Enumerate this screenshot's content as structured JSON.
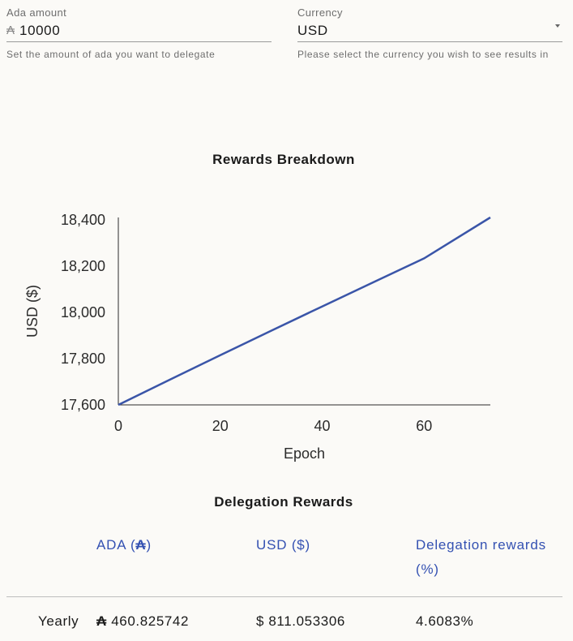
{
  "ada_field": {
    "label": "Ada amount",
    "prefix": "₳",
    "value": "10000",
    "helper": "Set the amount of ada you want to delegate"
  },
  "currency_field": {
    "label": "Currency",
    "value": "USD",
    "helper": "Please select the currency you wish to see results in"
  },
  "chart_data": {
    "type": "line",
    "title": "Rewards Breakdown",
    "xlabel": "Epoch",
    "ylabel": "USD ($)",
    "xlim": [
      0,
      73
    ],
    "ylim": [
      17600,
      18411
    ],
    "xticks": [
      0,
      20,
      40,
      60
    ],
    "yticks": [
      17600,
      17800,
      18000,
      18200,
      18400
    ],
    "ytick_labels": [
      "17,600",
      "17,800",
      "18,000",
      "18,200",
      "18,400"
    ],
    "color": "#3a55a8",
    "series": [
      {
        "x": [
          0,
          10,
          20,
          30,
          40,
          50,
          60,
          73
        ],
        "values": [
          17600,
          17708,
          17815,
          17921,
          18026,
          18130,
          18234,
          18411
        ]
      }
    ]
  },
  "rewards_table": {
    "title": "Delegation Rewards",
    "headers": {
      "ada_text": "ADA (",
      "ada_symbol": "₳",
      "ada_close": ")",
      "usd": "USD ($)",
      "pct": "Delegation rewards (%)"
    },
    "rows": [
      {
        "period": "Yearly",
        "ada_symbol": "₳",
        "ada": "460.825742",
        "usd": "$ 811.053306",
        "pct": "4.6083%"
      }
    ]
  }
}
